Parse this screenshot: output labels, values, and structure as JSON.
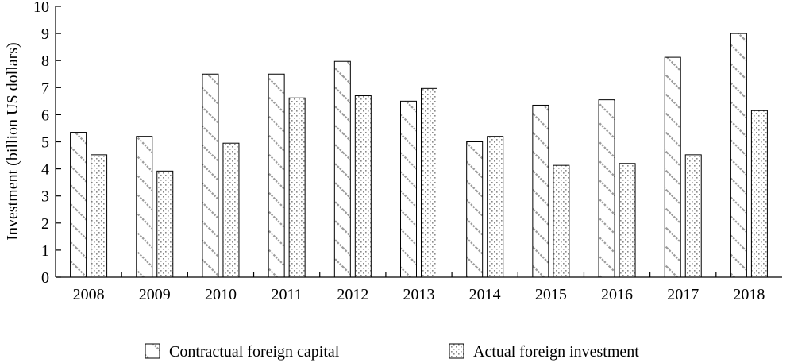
{
  "chart_data": {
    "type": "bar",
    "title": "",
    "xlabel": "",
    "ylabel": "Investment (billion US dollars)",
    "ylim": [
      0,
      10
    ],
    "yticks": [
      0,
      1,
      2,
      3,
      4,
      5,
      6,
      7,
      8,
      9,
      10
    ],
    "grid": false,
    "legend_position": "bottom",
    "categories": [
      "2008",
      "2009",
      "2010",
      "2011",
      "2012",
      "2013",
      "2014",
      "2015",
      "2016",
      "2017",
      "2018"
    ],
    "series": [
      {
        "name": "Contractual foreign capital",
        "pattern": "diagonal-hatch",
        "values": [
          5.35,
          5.2,
          7.5,
          7.5,
          7.97,
          6.5,
          5.0,
          6.35,
          6.55,
          8.12,
          9.0
        ]
      },
      {
        "name": "Actual foreign investment",
        "pattern": "dots",
        "values": [
          4.52,
          3.92,
          4.95,
          6.62,
          6.7,
          6.97,
          5.2,
          4.13,
          4.2,
          4.52,
          6.15
        ]
      }
    ]
  }
}
